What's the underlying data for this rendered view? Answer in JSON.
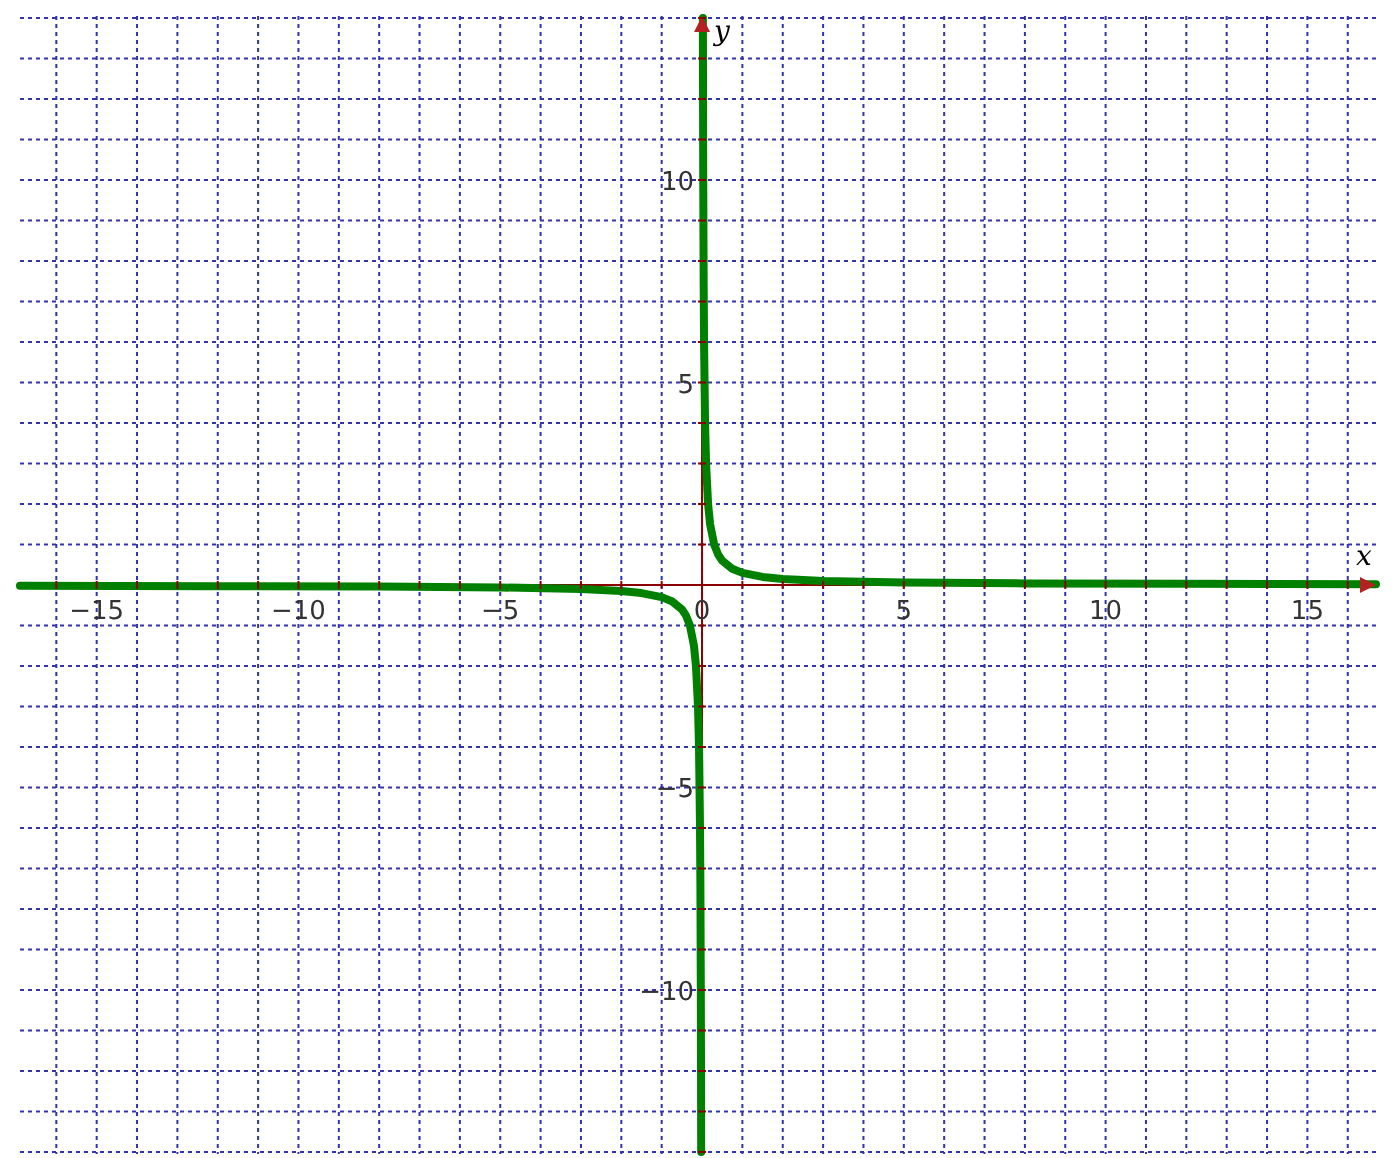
{
  "chart_data": {
    "type": "line",
    "xlabel": "x",
    "ylabel": "y",
    "xlim": [
      -16.9,
      16.7
    ],
    "ylim": [
      -14.05,
      14.05
    ],
    "xticks": [
      {
        "value": -16,
        "label": null
      },
      {
        "value": -15,
        "label": "−15"
      },
      {
        "value": -14,
        "label": null
      },
      {
        "value": -13,
        "label": null
      },
      {
        "value": -12,
        "label": null
      },
      {
        "value": -11,
        "label": null
      },
      {
        "value": -10,
        "label": "−10"
      },
      {
        "value": -9,
        "label": null
      },
      {
        "value": -8,
        "label": null
      },
      {
        "value": -7,
        "label": null
      },
      {
        "value": -6,
        "label": null
      },
      {
        "value": -5,
        "label": "−5"
      },
      {
        "value": -4,
        "label": null
      },
      {
        "value": -3,
        "label": null
      },
      {
        "value": -2,
        "label": null
      },
      {
        "value": -1,
        "label": null
      },
      0,
      {
        "value": 1,
        "label": null
      },
      {
        "value": 2,
        "label": null
      },
      {
        "value": 3,
        "label": null
      },
      {
        "value": 4,
        "label": null
      },
      5,
      {
        "value": 6,
        "label": null
      },
      {
        "value": 7,
        "label": null
      },
      {
        "value": 8,
        "label": null
      },
      {
        "value": 9,
        "label": null
      },
      10,
      {
        "value": 11,
        "label": null
      },
      {
        "value": 12,
        "label": null
      },
      {
        "value": 13,
        "label": null
      },
      {
        "value": 14,
        "label": null
      },
      15,
      {
        "value": 16,
        "label": null
      }
    ],
    "yticks": [
      {
        "value": -14,
        "label": null
      },
      {
        "value": -13,
        "label": null
      },
      {
        "value": -12,
        "label": null
      },
      {
        "value": -11,
        "label": null
      },
      {
        "value": -10,
        "label": "−10"
      },
      {
        "value": -9,
        "label": null
      },
      {
        "value": -8,
        "label": null
      },
      {
        "value": -7,
        "label": null
      },
      {
        "value": -6,
        "label": null
      },
      {
        "value": -5,
        "label": "−5"
      },
      {
        "value": -4,
        "label": null
      },
      {
        "value": -3,
        "label": null
      },
      {
        "value": -2,
        "label": null
      },
      {
        "value": -1,
        "label": null
      },
      {
        "value": 0,
        "label": null
      },
      {
        "value": 1,
        "label": null
      },
      {
        "value": 2,
        "label": null
      },
      {
        "value": 3,
        "label": null
      },
      {
        "value": 4,
        "label": null
      },
      5,
      {
        "value": 6,
        "label": null
      },
      {
        "value": 7,
        "label": null
      },
      {
        "value": 8,
        "label": null
      },
      {
        "value": 9,
        "label": null
      },
      10,
      {
        "value": 11,
        "label": null
      },
      {
        "value": 12,
        "label": null
      },
      {
        "value": 13,
        "label": null
      },
      {
        "value": 14,
        "label": null
      }
    ],
    "grid": true,
    "marker": "none",
    "line_style": "solid",
    "series": [
      {
        "color": "#008000",
        "x": [
          0.0214,
          0.025,
          0.03,
          0.04,
          0.05,
          0.075,
          0.1,
          0.15,
          0.2,
          0.3,
          0.4,
          0.5,
          0.75,
          1,
          1.5,
          2,
          3,
          5,
          8,
          12,
          16.7
        ],
        "values": [
          14,
          12,
          10,
          7.5,
          6,
          4,
          3,
          2,
          1.5,
          1,
          0.75,
          0.6,
          0.4,
          0.3,
          0.2,
          0.15,
          0.1,
          0.06,
          0.04,
          0.03,
          0.02
        ]
      },
      {
        "color": "#008000",
        "x": [
          -16.9,
          -12,
          -8,
          -5,
          -3,
          -2,
          -1.5,
          -1,
          -0.75,
          -0.5,
          -0.4,
          -0.3,
          -0.2,
          -0.15,
          -0.1,
          -0.075,
          -0.05,
          -0.04,
          -0.03,
          -0.025,
          -0.0214
        ],
        "values": [
          -0.02,
          -0.03,
          -0.04,
          -0.06,
          -0.1,
          -0.15,
          -0.2,
          -0.3,
          -0.4,
          -0.6,
          -0.75,
          -1,
          -1.5,
          -2,
          -3,
          -4,
          -6,
          -7.5,
          -10,
          -12,
          -14
        ]
      }
    ]
  }
}
